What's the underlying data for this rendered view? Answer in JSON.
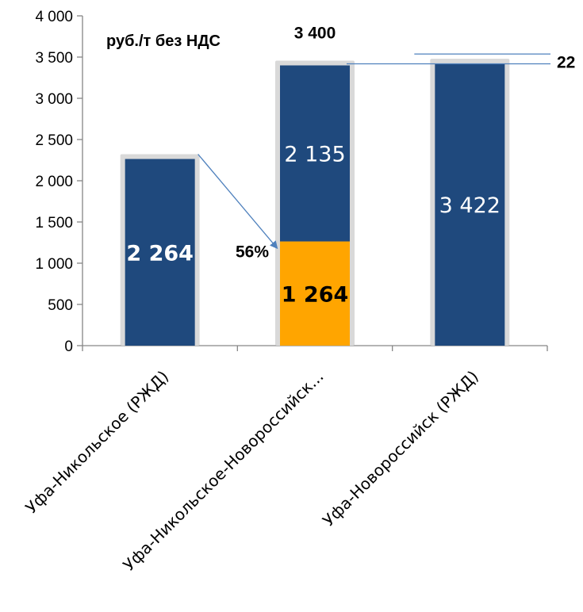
{
  "chart_data": {
    "type": "bar",
    "stacked": true,
    "categories": [
      "Уфа-Никольское (РЖД)",
      "Уфа-Никольское-Новороссийск...",
      "Уфа-Новороссийск (РЖД)"
    ],
    "series": [
      {
        "name": "",
        "color": "#1f497d",
        "values": [
          2264,
          2135,
          3422
        ],
        "labels": [
          "2 264",
          "2 135",
          "3 422"
        ],
        "label_color": [
          "#ffffff",
          "#ffffff",
          "#ffffff"
        ],
        "label_bold": [
          true,
          false,
          false
        ]
      },
      {
        "name": "",
        "color": "#ffa500",
        "values": [
          0,
          1264,
          0
        ],
        "labels": [
          "",
          "1 264",
          ""
        ],
        "label_color": [
          "#000000",
          "#000000",
          "#000000"
        ],
        "label_bold": [
          true,
          true,
          true
        ]
      }
    ],
    "title": "",
    "unit_label": "руб./т без НДС",
    "xlabel": "",
    "ylabel": "",
    "ylim": [
      0,
      4000
    ],
    "yticks": [
      0,
      500,
      1000,
      1500,
      2000,
      2500,
      3000,
      3500,
      4000
    ],
    "ytick_labels": [
      "0",
      "500",
      "1 000",
      "1 500",
      "2 000",
      "2 500",
      "3 000",
      "3 500",
      "4 000"
    ],
    "grid": false,
    "legend": "none",
    "annotations": {
      "total_label": "3 400",
      "total_value": 3400,
      "percent_label": "56%",
      "difference_label": "22",
      "difference_value": 22
    },
    "colors": {
      "bar_border": "#d9d9d9",
      "axis": "#868686",
      "arrow": "#4f81bd"
    }
  }
}
